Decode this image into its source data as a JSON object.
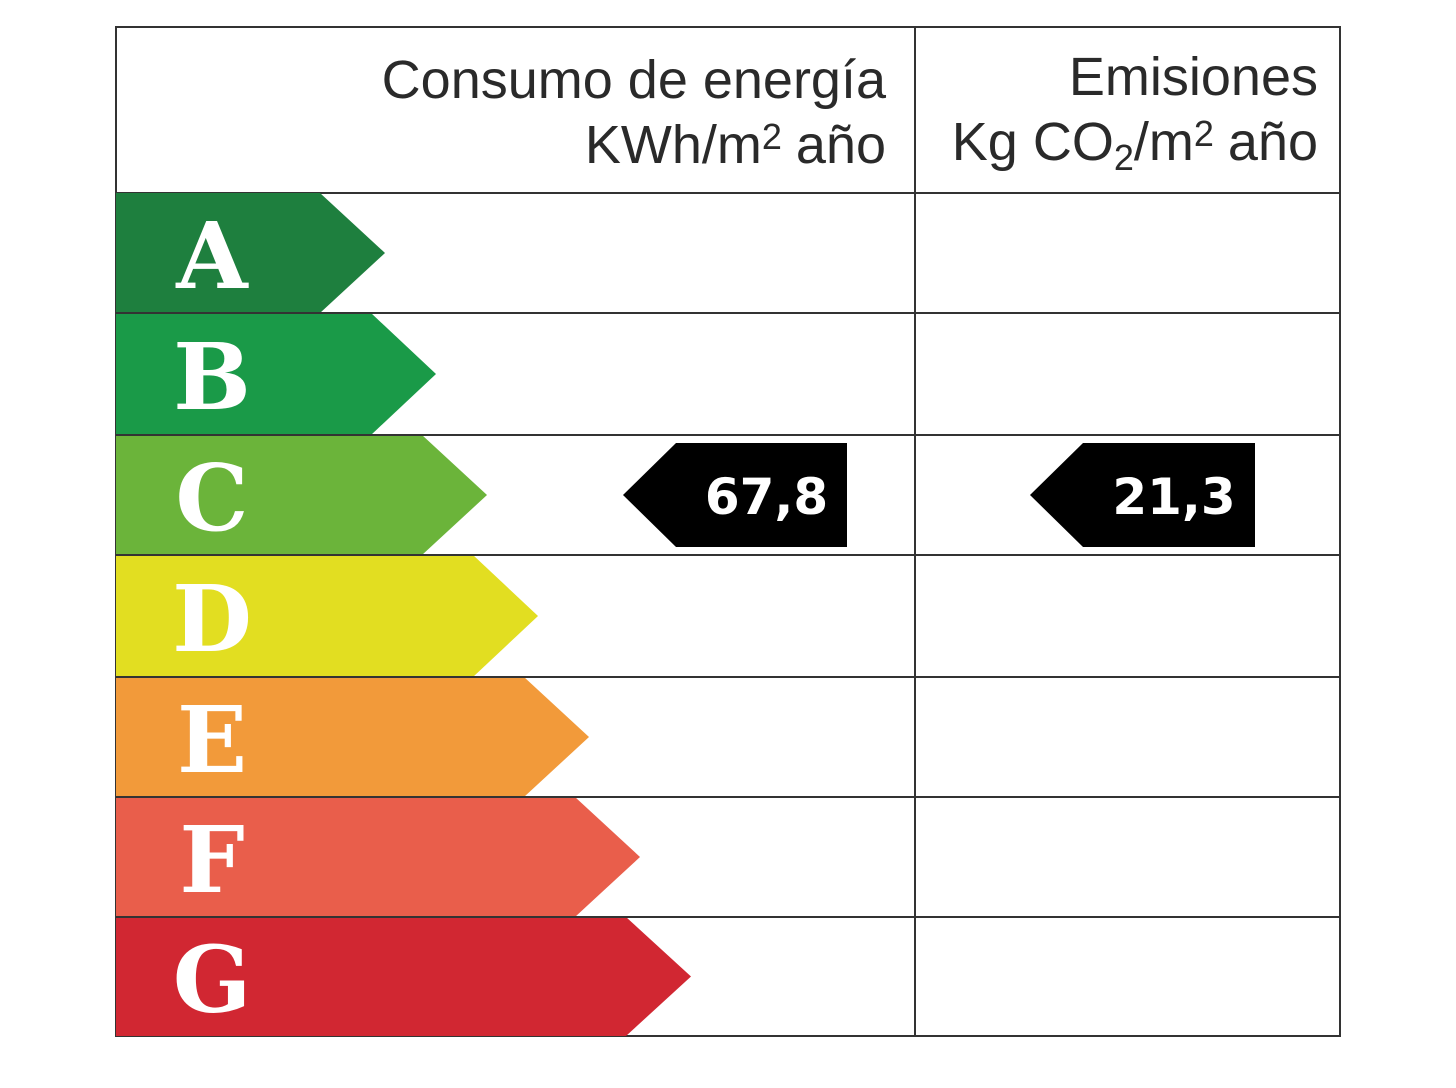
{
  "energy_header": {
    "line1": "Consumo de energía",
    "line2": [
      "KWh/m",
      "2",
      "año"
    ]
  },
  "emissions_header": {
    "line1": "Emisiones",
    "line2": [
      "Kg CO",
      "2",
      "/m",
      "2",
      "año"
    ]
  },
  "classes": [
    {
      "letter": "A",
      "color": "#1e7f3e"
    },
    {
      "letter": "B",
      "color": "#1a9a48"
    },
    {
      "letter": "C",
      "color": "#6bb43a"
    },
    {
      "letter": "D",
      "color": "#e2de21"
    },
    {
      "letter": "E",
      "color": "#f29a3a"
    },
    {
      "letter": "F",
      "color": "#e95e4b"
    },
    {
      "letter": "G",
      "color": "#d12732"
    }
  ],
  "energy_rating": {
    "class": "C",
    "value": "67,8"
  },
  "emissions_rating": {
    "class": "C",
    "value": "21,3"
  }
}
